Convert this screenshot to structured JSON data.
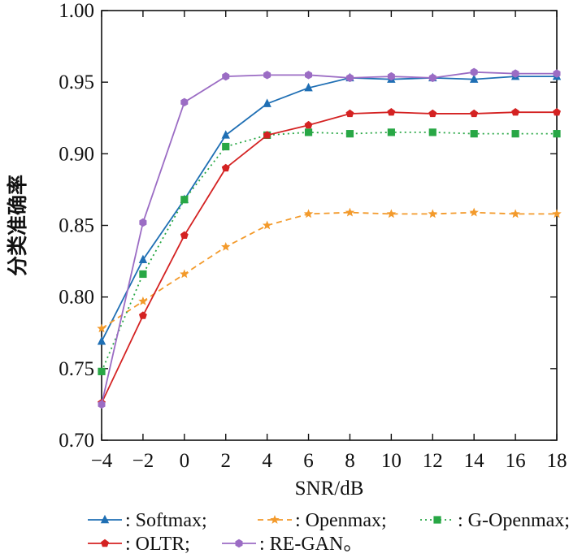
{
  "chart_data": {
    "type": "line",
    "title": "",
    "xlabel": "SNR/dB",
    "ylabel": "分类准确率",
    "xlim": [
      -4,
      18
    ],
    "ylim": [
      0.7,
      1.0
    ],
    "x": [
      -4,
      -2,
      0,
      2,
      4,
      6,
      8,
      10,
      12,
      14,
      16,
      18
    ],
    "x_tick_labels": [
      "−4",
      "−2",
      "0",
      "2",
      "4",
      "6",
      "8",
      "10",
      "12",
      "14",
      "16",
      "18"
    ],
    "y_ticks": [
      0.7,
      0.75,
      0.8,
      0.85,
      0.9,
      0.95,
      1.0
    ],
    "y_tick_labels": [
      "0.70",
      "0.75",
      "0.80",
      "0.85",
      "0.90",
      "0.95",
      "1.00"
    ],
    "grid": false,
    "legend_position": "bottom",
    "series": [
      {
        "name": "Softmax",
        "legend_label": ": Softmax;",
        "color": "#1f6fb4",
        "marker": "triangle",
        "dash": "solid",
        "values": [
          0.769,
          0.826,
          0.868,
          0.913,
          0.935,
          0.946,
          0.953,
          0.952,
          0.953,
          0.952,
          0.954,
          0.954
        ]
      },
      {
        "name": "Openmax",
        "legend_label": ": Openmax;",
        "color": "#f39a2b",
        "marker": "star",
        "dash": "dashed",
        "values": [
          0.778,
          0.797,
          0.816,
          0.835,
          0.85,
          0.858,
          0.859,
          0.858,
          0.858,
          0.859,
          0.858,
          0.858
        ]
      },
      {
        "name": "G-Openmax",
        "legend_label": ": G-Openmax;",
        "color": "#28a745",
        "marker": "square",
        "dash": "dotted",
        "values": [
          0.748,
          0.816,
          0.868,
          0.905,
          0.913,
          0.915,
          0.914,
          0.915,
          0.915,
          0.914,
          0.914,
          0.914
        ]
      },
      {
        "name": "OLTR",
        "legend_label": ": OLTR;",
        "color": "#d42222",
        "marker": "pentagon",
        "dash": "solid",
        "values": [
          0.726,
          0.787,
          0.843,
          0.89,
          0.913,
          0.92,
          0.928,
          0.929,
          0.928,
          0.928,
          0.929,
          0.929
        ]
      },
      {
        "name": "RE-GAN",
        "legend_label": ": RE-GAN。",
        "color": "#9b6cc4",
        "marker": "hexagon",
        "dash": "solid",
        "values": [
          0.725,
          0.852,
          0.936,
          0.954,
          0.955,
          0.955,
          0.953,
          0.954,
          0.953,
          0.957,
          0.956,
          0.956
        ]
      }
    ]
  }
}
